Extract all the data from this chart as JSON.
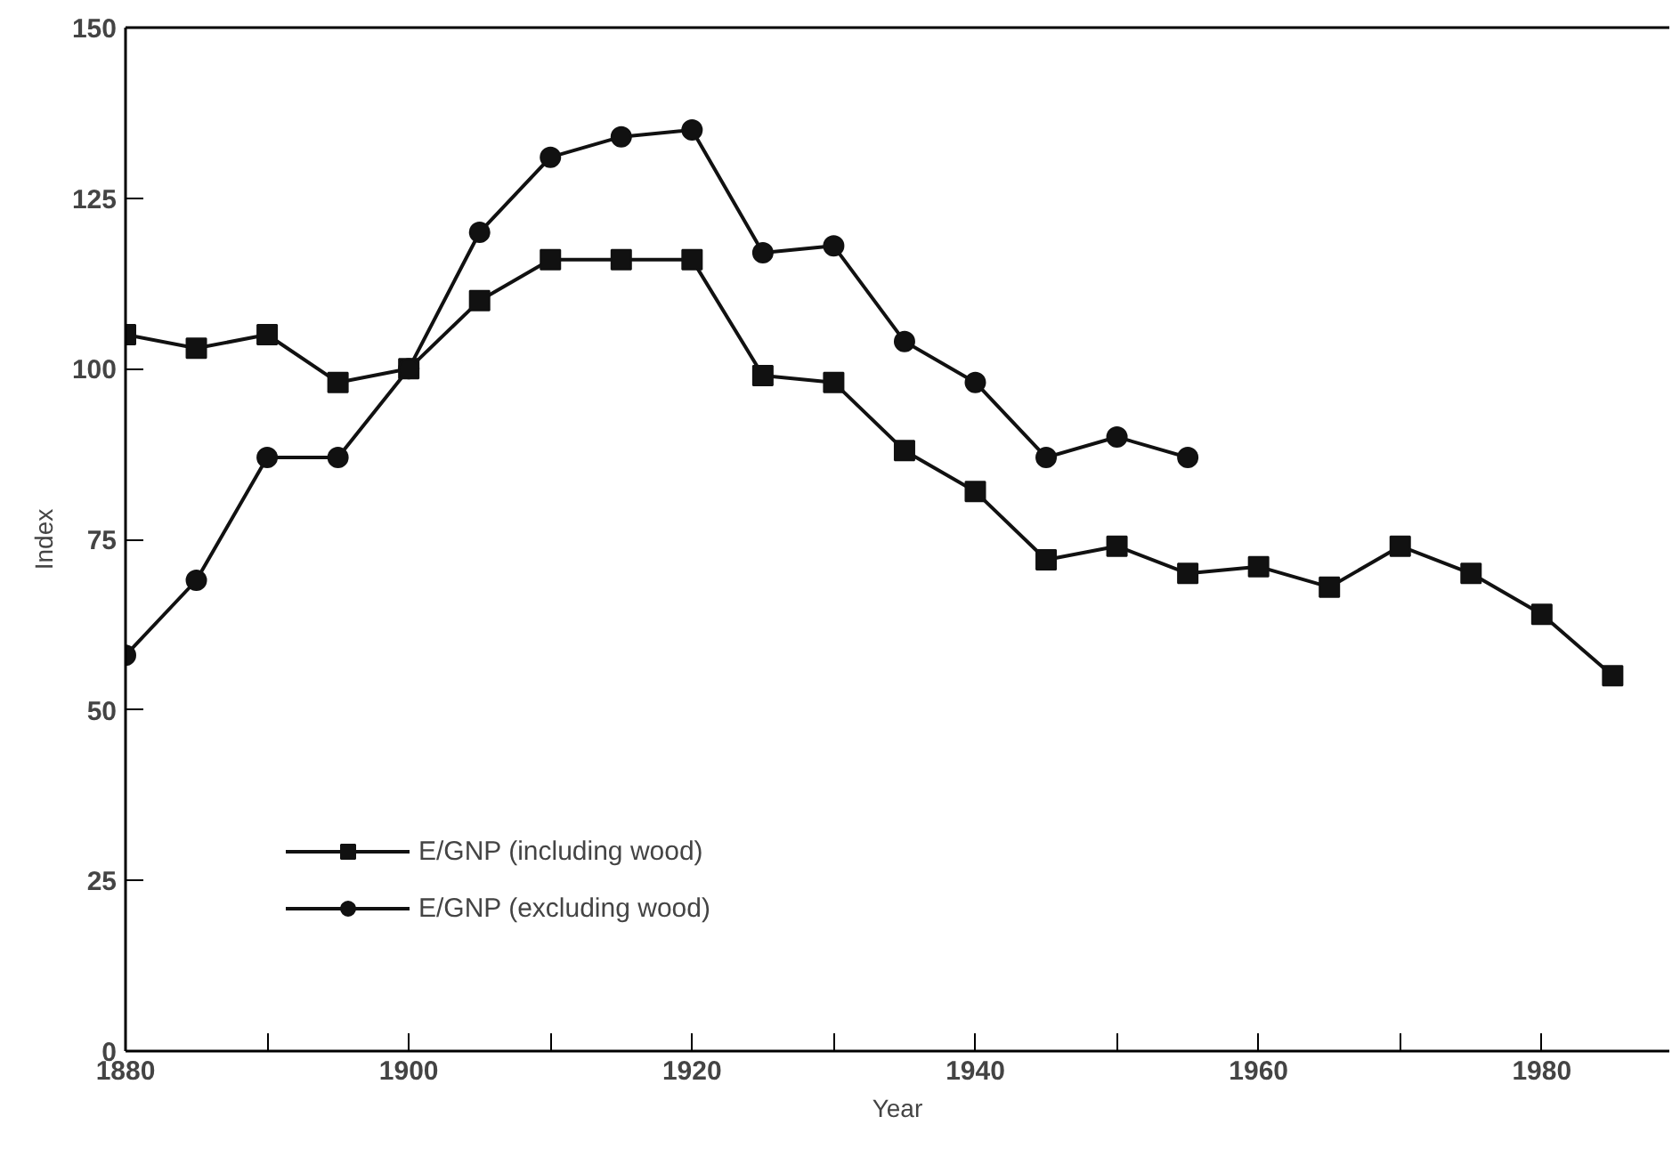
{
  "chart_data": {
    "type": "line",
    "xlabel": "Year",
    "ylabel": "Index",
    "xlim": [
      1880,
      1989
    ],
    "ylim": [
      0,
      150
    ],
    "xticks": [
      1880,
      {
        "value": 1890,
        "label": null
      },
      1900,
      {
        "value": 1910,
        "label": null
      },
      1920,
      {
        "value": 1930,
        "label": null
      },
      1940,
      {
        "value": 1950,
        "label": null
      },
      1960,
      {
        "value": 1970,
        "label": null
      },
      1980
    ],
    "yticks": [
      0,
      25,
      50,
      75,
      100,
      125,
      150
    ],
    "grid": false,
    "legend": "bottom left",
    "line_style": "solid",
    "series": [
      {
        "name": "E/GNP (including wood)",
        "color": "#111111",
        "marker": "square",
        "x": [
          1880,
          1885,
          1890,
          1895,
          1900,
          1905,
          1910,
          1915,
          1920,
          1925,
          1930,
          1935,
          1940,
          1945,
          1950,
          1955,
          1960,
          1965,
          1970,
          1975,
          1980,
          1985
        ],
        "values": [
          105,
          103,
          105,
          98,
          100,
          110,
          116,
          116,
          116,
          99,
          98,
          88,
          82,
          72,
          74,
          70,
          71,
          68,
          74,
          70,
          64,
          55
        ]
      },
      {
        "name": "E/GNP (excluding wood)",
        "color": "#111111",
        "marker": "circle",
        "x": [
          1880,
          1885,
          1890,
          1895,
          1900,
          1905,
          1910,
          1915,
          1920,
          1925,
          1930,
          1935,
          1940,
          1945,
          1950,
          1955
        ],
        "values": [
          58,
          69,
          87,
          87,
          100,
          120,
          131,
          134,
          135,
          117,
          118,
          104,
          98,
          87,
          90,
          87
        ]
      }
    ]
  }
}
